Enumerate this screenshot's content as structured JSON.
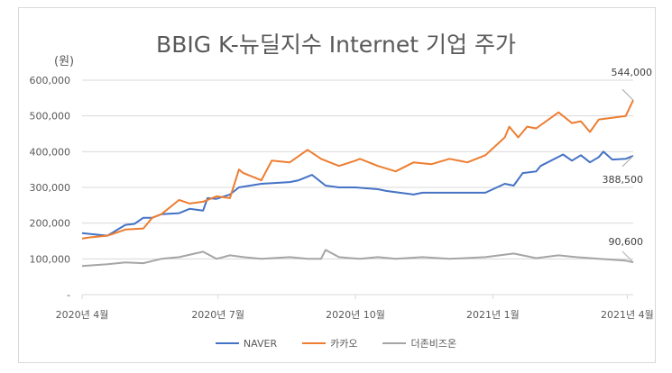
{
  "chart_data": {
    "type": "line",
    "title": "BBIG K-뉴딜지수 Internet 기업 주가",
    "ylabel": "(원)",
    "ylim": [
      0,
      600000
    ],
    "yticks": [
      "-",
      "100,000",
      "200,000",
      "300,000",
      "400,000",
      "500,000",
      "600,000"
    ],
    "xticks": [
      {
        "date": "2020-04-01",
        "label": "2020년 4월"
      },
      {
        "date": "2020-07-01",
        "label": "2020년 7월"
      },
      {
        "date": "2020-10-01",
        "label": "2020년 10월"
      },
      {
        "date": "2021-01-01",
        "label": "2021년 1월"
      },
      {
        "date": "2021-04-01",
        "label": "2021년 4월"
      }
    ],
    "xlim": [
      "2020-04-01",
      "2021-04-05"
    ],
    "grid": true,
    "legend": "bottom",
    "series": [
      {
        "name": "NAVER",
        "color": "#4472c4",
        "end_label": "388,500",
        "points": [
          [
            "2020-04-01",
            172000
          ],
          [
            "2020-04-06",
            170000
          ],
          [
            "2020-04-18",
            165000
          ],
          [
            "2020-04-30",
            195000
          ],
          [
            "2020-05-06",
            198000
          ],
          [
            "2020-05-12",
            215000
          ],
          [
            "2020-05-18",
            215000
          ],
          [
            "2020-05-24",
            225000
          ],
          [
            "2020-06-05",
            228000
          ],
          [
            "2020-06-12",
            240000
          ],
          [
            "2020-06-21",
            235000
          ],
          [
            "2020-06-24",
            270000
          ],
          [
            "2020-06-30",
            268000
          ],
          [
            "2020-07-09",
            280000
          ],
          [
            "2020-07-15",
            300000
          ],
          [
            "2020-07-30",
            310000
          ],
          [
            "2020-08-18",
            315000
          ],
          [
            "2020-08-24",
            320000
          ],
          [
            "2020-09-02",
            335000
          ],
          [
            "2020-09-11",
            305000
          ],
          [
            "2020-09-20",
            300000
          ],
          [
            "2020-10-01",
            300000
          ],
          [
            "2020-10-16",
            295000
          ],
          [
            "2020-10-22",
            290000
          ],
          [
            "2020-11-09",
            280000
          ],
          [
            "2020-11-15",
            285000
          ],
          [
            "2020-12-03",
            285000
          ],
          [
            "2020-12-27",
            285000
          ],
          [
            "2021-01-09",
            310000
          ],
          [
            "2021-01-15",
            305000
          ],
          [
            "2021-01-21",
            340000
          ],
          [
            "2021-01-30",
            345000
          ],
          [
            "2021-02-02",
            360000
          ],
          [
            "2021-02-17",
            392000
          ],
          [
            "2021-02-23",
            375000
          ],
          [
            "2021-03-01",
            390000
          ],
          [
            "2021-03-07",
            370000
          ],
          [
            "2021-03-13",
            385000
          ],
          [
            "2021-03-16",
            400000
          ],
          [
            "2021-03-22",
            378000
          ],
          [
            "2021-03-31",
            380000
          ],
          [
            "2021-04-05",
            388500
          ]
        ]
      },
      {
        "name": "카카오",
        "color": "#ed7d31",
        "end_label": "544,000",
        "points": [
          [
            "2020-04-01",
            157000
          ],
          [
            "2020-04-06",
            160000
          ],
          [
            "2020-04-18",
            165000
          ],
          [
            "2020-04-30",
            182000
          ],
          [
            "2020-05-12",
            185000
          ],
          [
            "2020-05-18",
            215000
          ],
          [
            "2020-05-24",
            225000
          ],
          [
            "2020-06-05",
            265000
          ],
          [
            "2020-06-12",
            255000
          ],
          [
            "2020-06-21",
            260000
          ],
          [
            "2020-06-30",
            275000
          ],
          [
            "2020-07-09",
            270000
          ],
          [
            "2020-07-15",
            350000
          ],
          [
            "2020-07-18",
            340000
          ],
          [
            "2020-07-30",
            320000
          ],
          [
            "2020-08-06",
            375000
          ],
          [
            "2020-08-18",
            370000
          ],
          [
            "2020-08-30",
            405000
          ],
          [
            "2020-09-08",
            380000
          ],
          [
            "2020-09-20",
            360000
          ],
          [
            "2020-10-01",
            375000
          ],
          [
            "2020-10-04",
            380000
          ],
          [
            "2020-10-16",
            360000
          ],
          [
            "2020-10-28",
            345000
          ],
          [
            "2020-11-09",
            370000
          ],
          [
            "2020-11-21",
            365000
          ],
          [
            "2020-12-03",
            380000
          ],
          [
            "2020-12-15",
            370000
          ],
          [
            "2020-12-27",
            390000
          ],
          [
            "2021-01-09",
            440000
          ],
          [
            "2021-01-12",
            470000
          ],
          [
            "2021-01-18",
            440000
          ],
          [
            "2021-01-24",
            470000
          ],
          [
            "2021-01-30",
            465000
          ],
          [
            "2021-02-14",
            510000
          ],
          [
            "2021-02-23",
            480000
          ],
          [
            "2021-03-01",
            485000
          ],
          [
            "2021-03-07",
            455000
          ],
          [
            "2021-03-13",
            490000
          ],
          [
            "2021-03-22",
            495000
          ],
          [
            "2021-03-31",
            500000
          ],
          [
            "2021-04-05",
            544000
          ]
        ]
      },
      {
        "name": "더존비즈온",
        "color": "#a5a5a5",
        "end_label": "90,600",
        "points": [
          [
            "2020-04-01",
            80000
          ],
          [
            "2020-04-18",
            85000
          ],
          [
            "2020-04-30",
            90000
          ],
          [
            "2020-05-12",
            88000
          ],
          [
            "2020-05-24",
            100000
          ],
          [
            "2020-06-05",
            105000
          ],
          [
            "2020-06-21",
            120000
          ],
          [
            "2020-06-30",
            100000
          ],
          [
            "2020-07-09",
            110000
          ],
          [
            "2020-07-18",
            105000
          ],
          [
            "2020-07-30",
            100000
          ],
          [
            "2020-08-18",
            105000
          ],
          [
            "2020-08-30",
            100000
          ],
          [
            "2020-09-08",
            100000
          ],
          [
            "2020-09-11",
            125000
          ],
          [
            "2020-09-20",
            105000
          ],
          [
            "2020-10-04",
            100000
          ],
          [
            "2020-10-16",
            105000
          ],
          [
            "2020-10-28",
            100000
          ],
          [
            "2020-11-15",
            105000
          ],
          [
            "2020-12-03",
            100000
          ],
          [
            "2020-12-27",
            105000
          ],
          [
            "2021-01-15",
            115000
          ],
          [
            "2021-01-30",
            102000
          ],
          [
            "2021-02-14",
            110000
          ],
          [
            "2021-02-26",
            105000
          ],
          [
            "2021-03-13",
            100000
          ],
          [
            "2021-03-31",
            95000
          ],
          [
            "2021-04-05",
            90600
          ]
        ]
      }
    ]
  }
}
